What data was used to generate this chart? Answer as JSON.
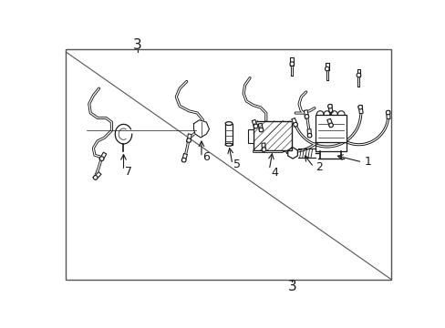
{
  "bg_color": "#ffffff",
  "line_color": "#1a1a1a",
  "border_color": "#555555",
  "label_fontsize": 9,
  "number_fontsize": 11,
  "fig_width": 4.89,
  "fig_height": 3.6,
  "dpi": 100
}
